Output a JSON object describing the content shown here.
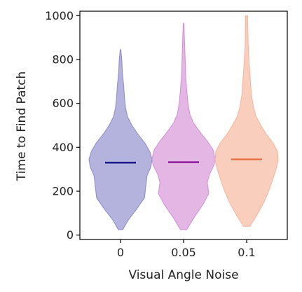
{
  "chart_data": {
    "type": "violin",
    "xlabel": "Visual Angle Noise",
    "ylabel": "Time to Find Patch",
    "categories": [
      "0",
      "0.05",
      "0.1"
    ],
    "ylim": [
      -20,
      1020
    ],
    "yticks": [
      0,
      200,
      400,
      600,
      800,
      1000
    ],
    "series": [
      {
        "category": "0",
        "color": "#8b8bcc",
        "median_color": "#1a1a8c",
        "median": 330,
        "min": 25,
        "max": 845,
        "profile": [
          [
            25,
            0.07
          ],
          [
            70,
            0.25
          ],
          [
            120,
            0.52
          ],
          [
            170,
            0.76
          ],
          [
            220,
            0.8
          ],
          [
            270,
            0.84
          ],
          [
            310,
            0.96
          ],
          [
            345,
            1.0
          ],
          [
            380,
            0.93
          ],
          [
            420,
            0.77
          ],
          [
            460,
            0.55
          ],
          [
            500,
            0.36
          ],
          [
            540,
            0.22
          ],
          [
            580,
            0.16
          ],
          [
            620,
            0.13
          ],
          [
            680,
            0.1
          ],
          [
            740,
            0.06
          ],
          [
            800,
            0.04
          ],
          [
            845,
            0.01
          ]
        ]
      },
      {
        "category": "0.05",
        "color": "#d48fd6",
        "median_color": "#8c1a9a",
        "median": 332,
        "min": 25,
        "max": 965,
        "profile": [
          [
            25,
            0.1
          ],
          [
            80,
            0.33
          ],
          [
            140,
            0.62
          ],
          [
            190,
            0.8
          ],
          [
            240,
            0.75
          ],
          [
            280,
            0.83
          ],
          [
            320,
            0.97
          ],
          [
            350,
            1.0
          ],
          [
            390,
            0.93
          ],
          [
            430,
            0.74
          ],
          [
            470,
            0.52
          ],
          [
            510,
            0.32
          ],
          [
            550,
            0.2
          ],
          [
            600,
            0.14
          ],
          [
            660,
            0.1
          ],
          [
            720,
            0.07
          ],
          [
            800,
            0.05
          ],
          [
            880,
            0.03
          ],
          [
            965,
            0.01
          ]
        ]
      },
      {
        "category": "0.1",
        "color": "#f6b49a",
        "median_color": "#e8714a",
        "median": 345,
        "min": 40,
        "max": 1000,
        "profile": [
          [
            40,
            0.1
          ],
          [
            90,
            0.32
          ],
          [
            150,
            0.55
          ],
          [
            200,
            0.7
          ],
          [
            250,
            0.82
          ],
          [
            300,
            0.93
          ],
          [
            340,
            1.0
          ],
          [
            380,
            0.98
          ],
          [
            420,
            0.84
          ],
          [
            460,
            0.62
          ],
          [
            500,
            0.45
          ],
          [
            540,
            0.3
          ],
          [
            580,
            0.22
          ],
          [
            640,
            0.15
          ],
          [
            700,
            0.12
          ],
          [
            780,
            0.08
          ],
          [
            860,
            0.05
          ],
          [
            930,
            0.04
          ],
          [
            1000,
            0.03
          ]
        ]
      }
    ]
  }
}
